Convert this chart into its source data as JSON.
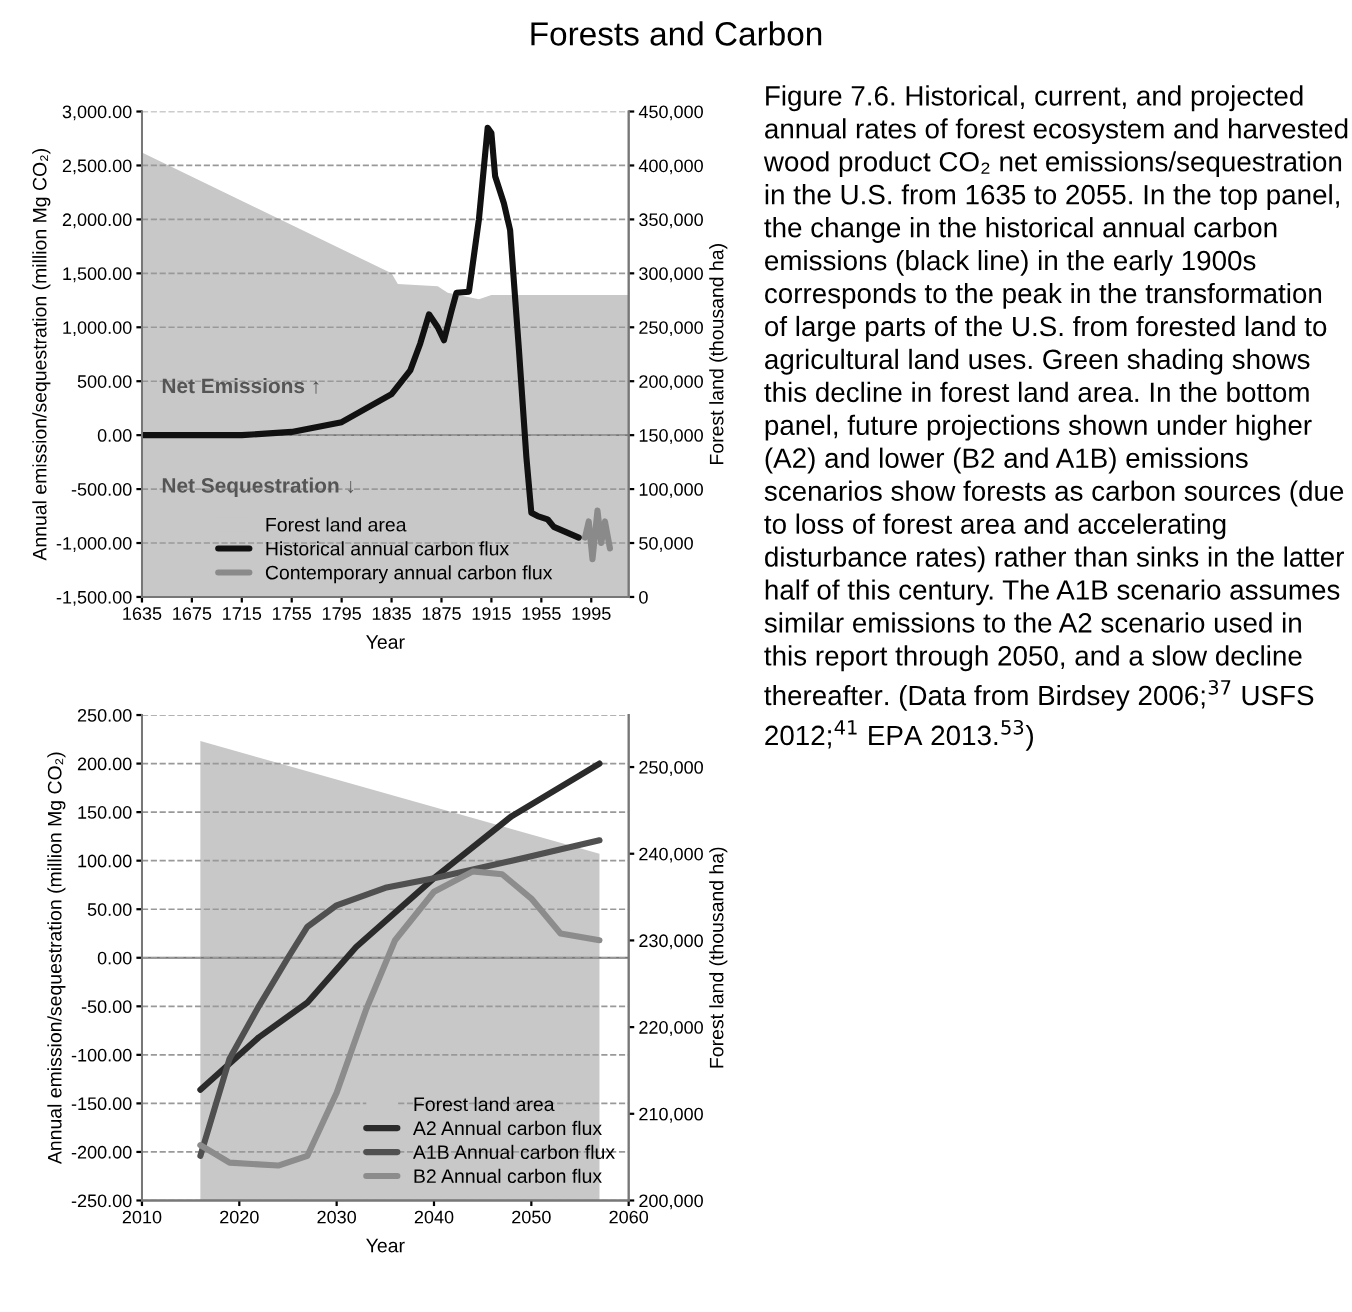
{
  "chart_data": [
    {
      "type": "line",
      "title": "Forests and Carbon",
      "xlabel": "Year",
      "ylabel": "Annual emission/sequestration (million Mg CO₂)",
      "y2label": "Forest land (thousand ha)",
      "xlim": [
        1635,
        2025
      ],
      "xticks": [
        1635,
        1675,
        1715,
        1755,
        1795,
        1835,
        1875,
        1915,
        1955,
        1995
      ],
      "ylim": [
        -1500,
        3000
      ],
      "yticks": [
        {
          "value": -1500,
          "label": "-1,500.00"
        },
        {
          "value": -1000,
          "label": "-1,000.00"
        },
        {
          "value": -500,
          "label": "-500.00"
        },
        {
          "value": 0,
          "label": "0.00"
        },
        {
          "value": 500,
          "label": "500.00"
        },
        {
          "value": 1000,
          "label": "1,000.00"
        },
        {
          "value": 1500,
          "label": "1,500.00"
        },
        {
          "value": 2000,
          "label": "2,000.00"
        },
        {
          "value": 2500,
          "label": "2,500.00"
        },
        {
          "value": 3000,
          "label": "3,000.00"
        }
      ],
      "y2lim": [
        0,
        450000
      ],
      "y2ticks": [
        0,
        {
          "value": 50000,
          "label": "50,000"
        },
        {
          "value": 100000,
          "label": "100,000"
        },
        {
          "value": 150000,
          "label": "150,000"
        },
        {
          "value": 200000,
          "label": "200,000"
        },
        {
          "value": 250000,
          "label": "250,000"
        },
        {
          "value": 300000,
          "label": "300,000"
        },
        {
          "value": 350000,
          "label": "350,000"
        },
        {
          "value": 400000,
          "label": "400,000"
        },
        {
          "value": 450000,
          "label": "450,000"
        }
      ],
      "grid": "y",
      "legend": "bottom",
      "marker": "none",
      "line_style": "solid",
      "series": [
        {
          "name": "Forest land area",
          "type": "area",
          "axis": "y2",
          "color": "#c8c8c8",
          "x": [
            1635,
            1835,
            1840,
            1872,
            1880,
            1905,
            1915,
            2025
          ],
          "values": [
            412000,
            300000,
            290000,
            288000,
            282000,
            276000,
            280000,
            280000
          ]
        },
        {
          "name": "Historical annual carbon flux",
          "color": "#111111",
          "x": [
            1635,
            1715,
            1755,
            1795,
            1835,
            1850,
            1858,
            1865,
            1872,
            1877,
            1883,
            1887,
            1897,
            1905,
            1912,
            1915,
            1918,
            1925,
            1930,
            1937,
            1943,
            1947,
            1952,
            1960,
            1965,
            1985
          ],
          "values": [
            0,
            0,
            30,
            120,
            380,
            600,
            850,
            1120,
            1000,
            880,
            1150,
            1320,
            1330,
            2000,
            2850,
            2800,
            2400,
            2150,
            1900,
            800,
            -200,
            -720,
            -750,
            -780,
            -850,
            -950
          ]
        },
        {
          "name": "Contemporary annual carbon flux",
          "color": "#8a8a8a",
          "x": [
            1990,
            1993,
            1996,
            2000,
            2003,
            2006,
            2010
          ],
          "values": [
            -950,
            -800,
            -1150,
            -700,
            -1000,
            -800,
            -1050
          ]
        }
      ],
      "annotations": [
        "Net Emissions ↑",
        "Net Sequestration ↓"
      ]
    },
    {
      "type": "line",
      "xlabel": "Year",
      "ylabel": "Annual emission/sequestration (million Mg CO₂)",
      "y2label": "Forest land (thousand ha)",
      "xlim": [
        2010,
        2060
      ],
      "xticks": [
        2010,
        2020,
        2030,
        2040,
        2050,
        2060
      ],
      "ylim": [
        -250,
        250
      ],
      "yticks": [
        {
          "value": -250,
          "label": "-250.00"
        },
        {
          "value": -200,
          "label": "-200.00"
        },
        {
          "value": -150,
          "label": "-150.00"
        },
        {
          "value": -100,
          "label": "-100.00"
        },
        {
          "value": -50,
          "label": "-50.00"
        },
        {
          "value": 0,
          "label": "0.00"
        },
        {
          "value": 50,
          "label": "50.00"
        },
        {
          "value": 100,
          "label": "100.00"
        },
        {
          "value": 150,
          "label": "150.00"
        },
        {
          "value": 200,
          "label": "200.00"
        },
        {
          "value": 250,
          "label": "250.00"
        }
      ],
      "y2lim": [
        200000,
        256000
      ],
      "y2ticks": [
        {
          "value": 200000,
          "label": "200,000"
        },
        {
          "value": 210000,
          "label": "210,000"
        },
        {
          "value": 220000,
          "label": "220,000"
        },
        {
          "value": 230000,
          "label": "230,000"
        },
        {
          "value": 240000,
          "label": "240,000"
        },
        {
          "value": 250000,
          "label": "250,000"
        }
      ],
      "grid": "y",
      "legend": "bottom right",
      "marker": "none",
      "line_style": "solid",
      "series": [
        {
          "name": "Forest land area",
          "type": "area",
          "axis": "y2",
          "color": "#c8c8c8",
          "x": [
            2016,
            2057
          ],
          "values": [
            253000,
            240000
          ]
        },
        {
          "name": "A2 Annual carbon flux",
          "color": "#2b2b2b",
          "x": [
            2016,
            2022,
            2027,
            2032,
            2040,
            2048,
            2057
          ],
          "values": [
            -136,
            -82,
            -46,
            11,
            82,
            146,
            200
          ]
        },
        {
          "name": "A1B Annual carbon flux",
          "color": "#505050",
          "x": [
            2016,
            2019,
            2022,
            2025,
            2027,
            2030,
            2035,
            2040,
            2048,
            2057
          ],
          "values": [
            -204,
            -104,
            -50,
            0,
            32,
            54,
            72,
            82,
            100,
            121
          ]
        },
        {
          "name": "B2 Annual carbon flux",
          "color": "#8c8c8c",
          "x": [
            2016,
            2019,
            2024,
            2027,
            2030,
            2033,
            2036,
            2040,
            2044,
            2047,
            2050,
            2053,
            2057
          ],
          "values": [
            -193,
            -211,
            -214,
            -204,
            -139,
            -54,
            18,
            68,
            89,
            86,
            61,
            25,
            18
          ]
        }
      ]
    },
    {
      "type": "other",
      "annotations": [
        "Figure 7.6. Historical, current, and projected annual rates of forest ecosystem and harvested wood product CO₂ net emissions/sequestration in the U.S. from 1635 to 2055. In the top panel, the change in the historical annual carbon emissions (black line) in the early 1900s corresponds to the peak in the transformation of large parts of the U.S. from forested land to agricultural land uses. Green shading shows this decline in forest land area. In the bottom panel, future projections shown under higher (A2) and lower (B2 and A1B) emissions scenarios show forests as carbon sources (due to loss of forest area and accelerating disturbance rates) rather than sinks in the latter half of this century. The A1B scenario assumes similar emissions to the A2 scenario used in this report through 2050, and a slow decline thereafter. (Data from Birdsey 2006;$^{37}$ USFS 2012;$^{41}$ EPA 2013.$^{53}$)"
      ]
    }
  ]
}
